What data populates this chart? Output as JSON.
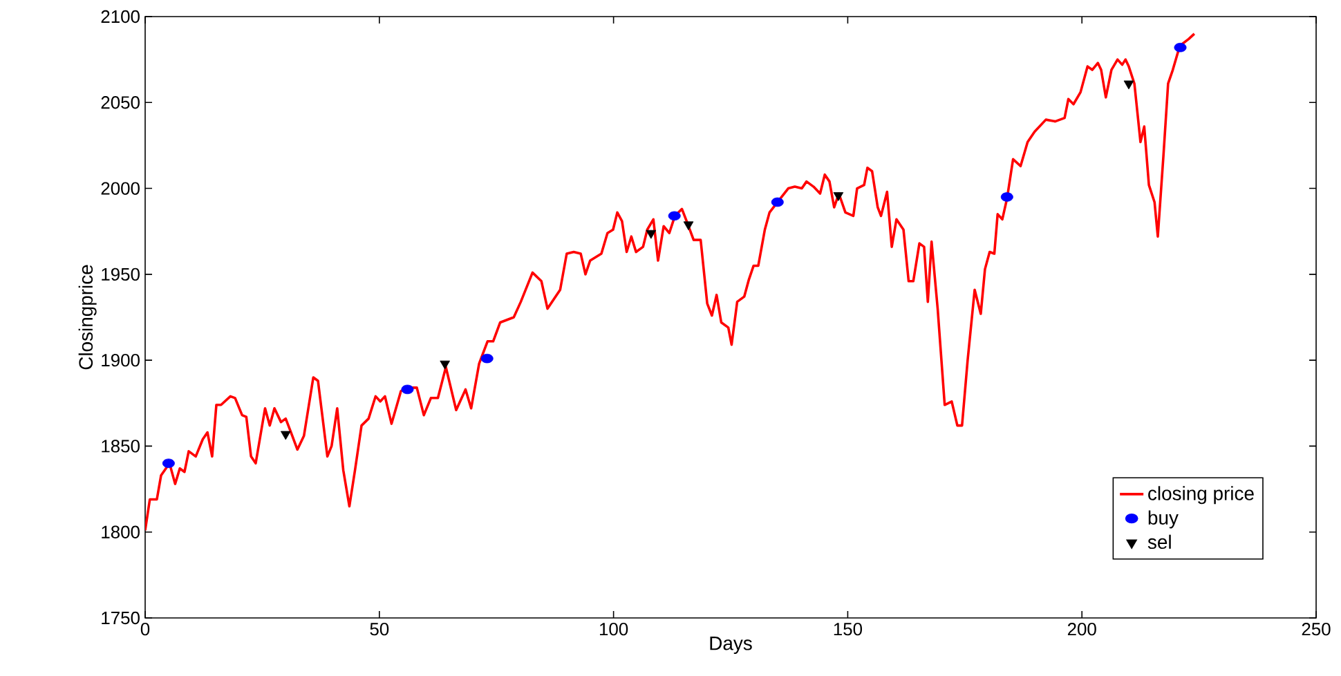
{
  "chart_data": {
    "type": "line",
    "xlabel": "Days",
    "ylabel": "Closingprice",
    "xlim": [
      0,
      250
    ],
    "xticks": [
      0,
      50,
      100,
      150,
      200,
      250
    ],
    "ylim": [
      1750,
      2100
    ],
    "yticks": [
      1750,
      1800,
      1850,
      1900,
      1950,
      2000,
      2050,
      2100
    ],
    "legend": "bottom right",
    "grid": false,
    "series": [
      {
        "name": "closing price",
        "color": "#ff0000",
        "line_style": "solid",
        "marker": "none",
        "x": [
          0,
          1,
          2.5,
          3.4,
          5.2,
          6.4,
          7.4,
          8.4,
          9.3,
          10.8,
          12.3,
          13.3,
          14.3,
          15.2,
          16.2,
          18.2,
          19.2,
          20.7,
          21.6,
          22.6,
          23.6,
          25.6,
          26.6,
          27.6,
          29,
          30,
          31,
          32.5,
          33.9,
          35.9,
          36.9,
          38.9,
          39.8,
          41,
          42.3,
          43.6,
          44.8,
          46.2,
          47.7,
          49.2,
          50.2,
          51.2,
          52.6,
          54.6,
          56.1,
          58,
          59.5,
          61,
          62.5,
          64.2,
          66.4,
          68.4,
          69.6,
          71.3,
          73.1,
          74.3,
          75.8,
          78.7,
          80.2,
          82.7,
          84.6,
          85.9,
          88.6,
          90,
          91.5,
          93,
          94,
          95,
          97.4,
          98.7,
          99.9,
          100.8,
          101.8,
          102.8,
          103.8,
          104.8,
          106.3,
          107.2,
          108.5,
          109.5,
          110.7,
          111.9,
          113.1,
          114.6,
          115.6,
          117.1,
          118.6,
          120,
          121,
          122,
          123,
          124.5,
          125.2,
          126.4,
          127.9,
          128.9,
          129.9,
          130.9,
          132.3,
          133.3,
          135.3,
          137.3,
          138.7,
          140.2,
          141.2,
          142.7,
          144.1,
          145.1,
          146.1,
          147.1,
          148.1,
          149.5,
          151.2,
          152,
          153.5,
          154.2,
          155.2,
          156.4,
          157.1,
          158.4,
          159.4,
          160.4,
          161.9,
          163,
          164,
          165.3,
          166.3,
          167.1,
          167.9,
          169.2,
          170.7,
          172.2,
          173.4,
          174.4,
          175.6,
          177.1,
          178.4,
          179.3,
          180.3,
          181.3,
          182,
          183,
          184,
          185.3,
          186.9,
          188.4,
          189.9,
          192.3,
          194.3,
          196.3,
          197.1,
          198.2,
          199.7,
          201.2,
          202.2,
          203.4,
          204.1,
          205.1,
          206.3,
          207.6,
          208.6,
          209.3,
          210,
          211.2,
          212.5,
          213.3,
          214.3,
          215.5,
          216.2,
          217.4,
          218.4,
          219.4,
          220.9,
          222.8,
          224
        ],
        "values": [
          1801,
          1819,
          1819,
          1833,
          1840,
          1828,
          1837,
          1835,
          1847,
          1844,
          1854,
          1858,
          1844,
          1874,
          1874,
          1879,
          1878,
          1868,
          1867,
          1844,
          1840,
          1872,
          1862,
          1872,
          1864,
          1866,
          1859,
          1848,
          1856,
          1890,
          1888,
          1844,
          1850,
          1872,
          1836,
          1815,
          1836,
          1862,
          1866,
          1879,
          1876,
          1879,
          1863,
          1882,
          1884,
          1884,
          1868,
          1878,
          1878,
          1896,
          1871,
          1883,
          1872,
          1898,
          1911,
          1911,
          1922,
          1925,
          1934,
          1951,
          1946,
          1930,
          1941,
          1962,
          1963,
          1962,
          1950,
          1958,
          1962,
          1974,
          1976,
          1986,
          1981,
          1963,
          1972,
          1963,
          1966,
          1976,
          1982,
          1958,
          1978,
          1974,
          1984,
          1988,
          1981,
          1970,
          1970,
          1933,
          1926,
          1938,
          1922,
          1919,
          1909,
          1934,
          1937,
          1947,
          1955,
          1955,
          1976,
          1986,
          1993,
          2000,
          2001,
          2000,
          2004,
          2001,
          1997,
          2008,
          2004,
          1989,
          1997,
          1986,
          1984,
          2000,
          2002,
          2012,
          2010,
          1989,
          1984,
          1998,
          1966,
          1982,
          1976,
          1946,
          1946,
          1968,
          1966,
          1934,
          1969,
          1930,
          1874,
          1876,
          1862,
          1862,
          1900,
          1941,
          1927,
          1953,
          1963,
          1962,
          1985,
          1982,
          1994,
          2017,
          2013,
          2027,
          2033,
          2040,
          2039,
          2041,
          2052,
          2049,
          2056,
          2071,
          2069,
          2073,
          2069,
          2053,
          2069,
          2075,
          2072,
          2075,
          2071,
          2061,
          2027,
          2036,
          2002,
          1992,
          1972,
          2019,
          2061,
          2069,
          2083,
          2087,
          2090
        ]
      },
      {
        "name": "buy",
        "type": "scatter",
        "color": "#0000ff",
        "marker": "circle",
        "x": [
          5,
          56,
          73,
          113,
          135,
          184,
          221
        ],
        "values": [
          1840,
          1883,
          1901,
          1984,
          1992,
          1995,
          2082
        ]
      },
      {
        "name": "sel",
        "type": "scatter",
        "color": "#000000",
        "marker": "triangle",
        "x": [
          30,
          64,
          108,
          116,
          148,
          210
        ],
        "values": [
          1857,
          1898,
          1974,
          1979,
          1996,
          2061
        ]
      }
    ]
  }
}
